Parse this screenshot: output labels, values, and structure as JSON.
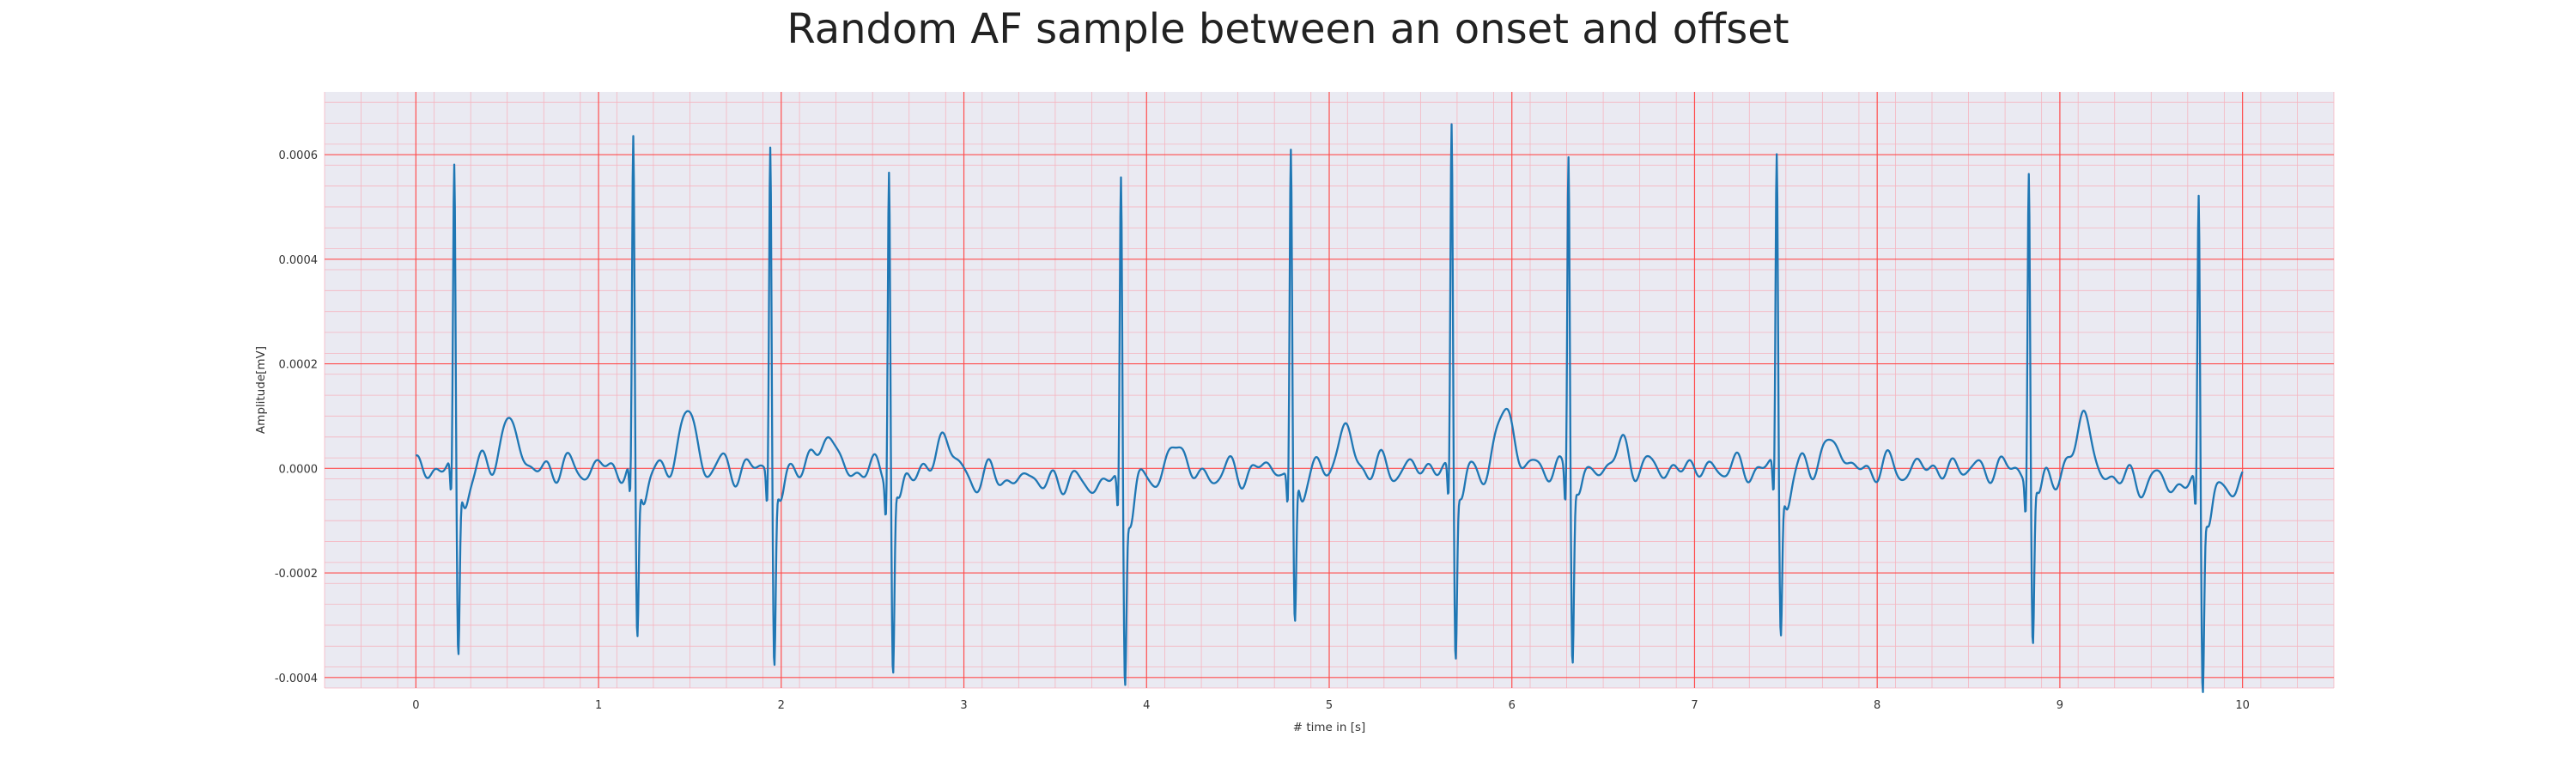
{
  "chart_data": {
    "type": "line",
    "title": "Random AF sample between an onset and offset",
    "xlabel": "# time in [s]",
    "ylabel": "Amplitude[mV]",
    "xlim": [
      -0.5,
      10.5
    ],
    "ylim": [
      -0.00042,
      0.00072
    ],
    "x_ticks": [
      0,
      1,
      2,
      3,
      4,
      5,
      6,
      7,
      8,
      9,
      10
    ],
    "x_tick_labels": [
      "0",
      "1",
      "2",
      "3",
      "4",
      "5",
      "6",
      "7",
      "8",
      "9",
      "10"
    ],
    "y_ticks": [
      -0.0004,
      -0.0002,
      0.0,
      0.0002,
      0.0004,
      0.0006
    ],
    "y_tick_labels": [
      "-0.0004",
      "-0.0002",
      "0.0000",
      "0.0002",
      "0.0004",
      "0.0006"
    ],
    "grid": true,
    "minor_grid": true,
    "sample_rate_hz": 300,
    "baseline_segments": [
      [
        0.0,
        0.0
      ],
      [
        2.3,
        0.0
      ],
      [
        3.8,
        -3e-05
      ],
      [
        4.7,
        0.0
      ],
      [
        6.2,
        0.0
      ],
      [
        7.4,
        0.0
      ],
      [
        8.7,
        0.0
      ],
      [
        10.0,
        -4e-05
      ]
    ],
    "series": [
      {
        "color": "#1f77b4",
        "beats": [
          {
            "t": 0.21,
            "r": 0.00057,
            "s": -0.00035,
            "t_wave": 0.0001
          },
          {
            "t": 1.19,
            "r": 0.00062,
            "s": -0.00032,
            "t_wave": 0.00011
          },
          {
            "t": 1.94,
            "r": 0.00063,
            "s": -0.00036,
            "t_wave": 7e-05
          },
          {
            "t": 2.59,
            "r": 0.0006,
            "s": -0.00037,
            "t_wave": 8e-05
          },
          {
            "t": 3.86,
            "r": 0.00059,
            "s": -0.00035,
            "t_wave": 7e-05
          },
          {
            "t": 4.79,
            "r": 0.00061,
            "s": -0.0003,
            "t_wave": 7e-05
          },
          {
            "t": 5.67,
            "r": 0.00067,
            "s": -0.00034,
            "t_wave": 0.00012
          },
          {
            "t": 6.31,
            "r": 0.00062,
            "s": -0.00035,
            "t_wave": 4e-05
          },
          {
            "t": 7.45,
            "r": 0.0006,
            "s": -0.0003,
            "t_wave": 6e-05
          },
          {
            "t": 8.83,
            "r": 0.00059,
            "s": -0.00032,
            "t_wave": 0.00012
          },
          {
            "t": 9.76,
            "r": 0.00055,
            "s": -0.00037,
            "t_wave": 3e-05
          }
        ]
      }
    ]
  },
  "colors": {
    "plot_background": "#eaeaf2",
    "major_grid": "#ff4d4d",
    "minor_grid": "#f5b5c0",
    "line": "#1f77b4"
  }
}
